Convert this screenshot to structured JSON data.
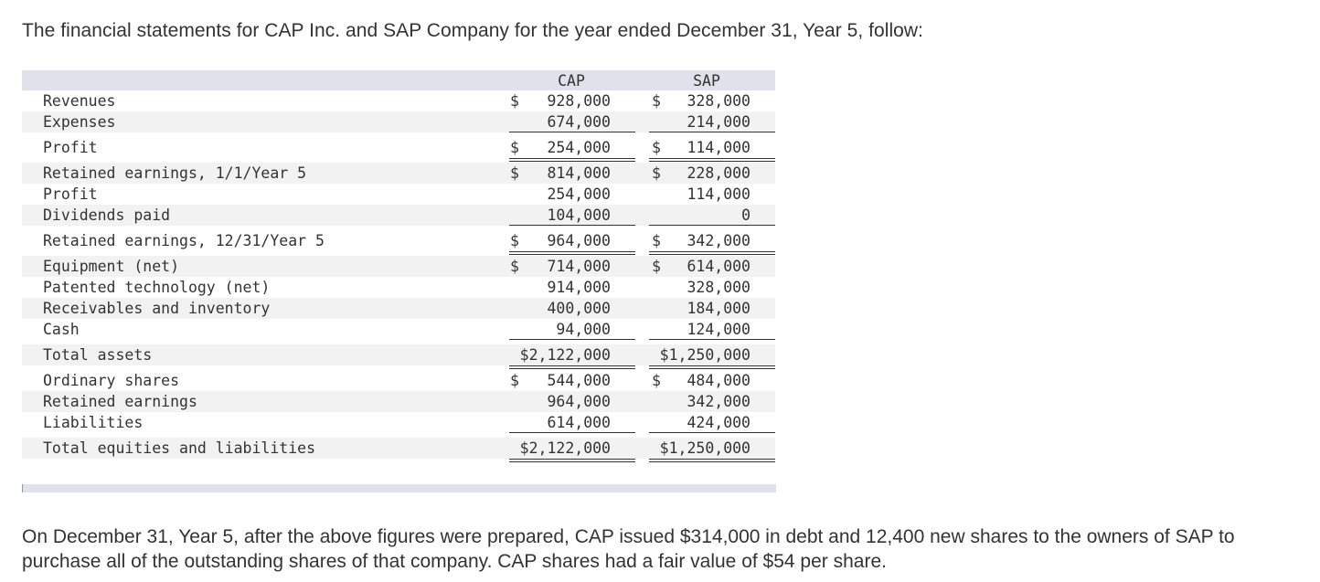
{
  "intro_text": "The financial statements for CAP Inc. and SAP Company for the year ended December 31, Year 5, follow:",
  "columns": {
    "cap": "CAP",
    "sap": "SAP"
  },
  "rows": [
    {
      "label": "Revenues",
      "cap_sym": "$",
      "cap": "928,000",
      "sap_sym": "$",
      "sap": "328,000"
    },
    {
      "label": "Expenses",
      "cap_sym": "",
      "cap": "674,000",
      "sap_sym": "",
      "sap": "214,000"
    },
    {
      "label": "Profit",
      "cap_sym": "$",
      "cap": "254,000",
      "sap_sym": "$",
      "sap": "114,000"
    },
    {
      "label": "Retained earnings, 1/1/Year 5",
      "cap_sym": "$",
      "cap": "814,000",
      "sap_sym": "$",
      "sap": "228,000"
    },
    {
      "label": "Profit",
      "cap_sym": "",
      "cap": "254,000",
      "sap_sym": "",
      "sap": "114,000"
    },
    {
      "label": "Dividends paid",
      "cap_sym": "",
      "cap": "104,000",
      "sap_sym": "",
      "sap": "0"
    },
    {
      "label": "Retained earnings, 12/31/Year 5",
      "cap_sym": "$",
      "cap": "964,000",
      "sap_sym": "$",
      "sap": "342,000"
    },
    {
      "label": "Equipment (net)",
      "cap_sym": "$",
      "cap": "714,000",
      "sap_sym": "$",
      "sap": "614,000"
    },
    {
      "label": "Patented technology (net)",
      "cap_sym": "",
      "cap": "914,000",
      "sap_sym": "",
      "sap": "328,000"
    },
    {
      "label": "Receivables and inventory",
      "cap_sym": "",
      "cap": "400,000",
      "sap_sym": "",
      "sap": "184,000"
    },
    {
      "label": "Cash",
      "cap_sym": "",
      "cap": "94,000",
      "sap_sym": "",
      "sap": "124,000"
    },
    {
      "label": "Total assets",
      "cap_sym": "",
      "cap": "$2,122,000",
      "sap_sym": "",
      "sap": "$1,250,000"
    },
    {
      "label": "Ordinary shares",
      "cap_sym": "$",
      "cap": "544,000",
      "sap_sym": "$",
      "sap": "484,000"
    },
    {
      "label": "Retained earnings",
      "cap_sym": "",
      "cap": "964,000",
      "sap_sym": "",
      "sap": "342,000"
    },
    {
      "label": "Liabilities",
      "cap_sym": "",
      "cap": "614,000",
      "sap_sym": "",
      "sap": "424,000"
    },
    {
      "label": "Total equities and liabilities",
      "cap_sym": "",
      "cap": "$2,122,000",
      "sap_sym": "",
      "sap": "$1,250,000"
    }
  ],
  "outro_text": "On December 31, Year 5, after the above figures were prepared, CAP issued $314,000 in debt and 12,400 new shares to the owners of SAP to purchase all of the outstanding shares of that company. CAP shares had a fair value of $54 per share."
}
